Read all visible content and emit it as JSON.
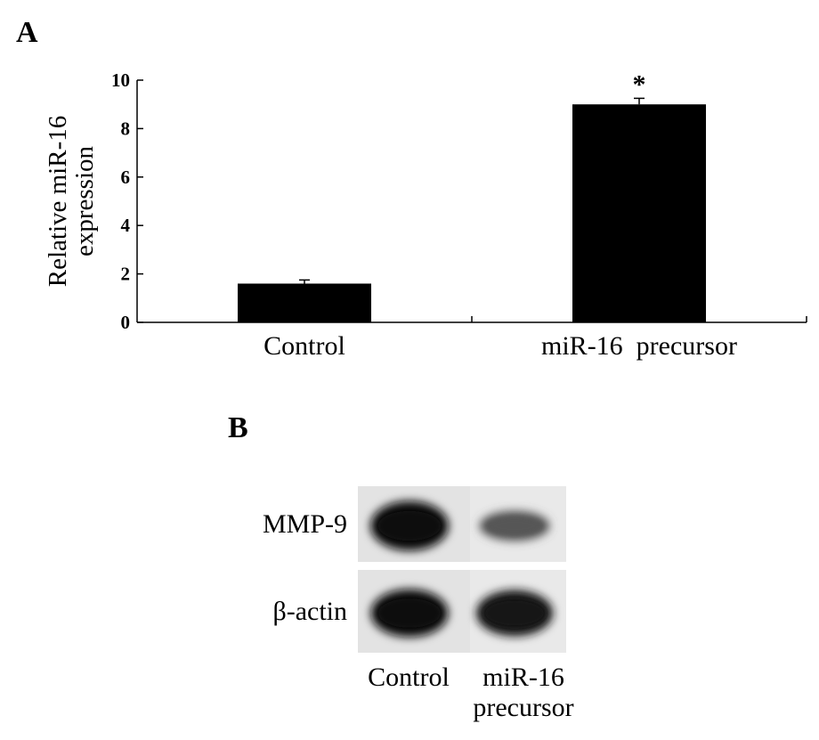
{
  "panel_a_label": "A",
  "panel_b_label": "B",
  "chart_data": {
    "type": "bar",
    "categories": [
      "Control",
      "miR-16  precursor"
    ],
    "values": [
      1.6,
      9.0
    ],
    "errors": [
      0.15,
      0.25
    ],
    "annotations": [
      "",
      "*"
    ],
    "ylabel_line1": "Relative miR-16",
    "ylabel_line2": "expression",
    "xlabel": "",
    "ylim": [
      0,
      10
    ],
    "yticks": [
      0,
      2,
      4,
      6,
      8,
      10
    ],
    "grid": false,
    "bar_color": "#000000"
  },
  "blot": {
    "rows": [
      {
        "label": "MMP-9",
        "intensities": [
          1.0,
          0.45
        ]
      },
      {
        "label": "β-actin",
        "intensities": [
          0.95,
          0.9
        ]
      }
    ],
    "lanes": [
      {
        "line1": "Control",
        "line2": ""
      },
      {
        "line1": "miR-16",
        "line2": "precursor"
      }
    ]
  }
}
